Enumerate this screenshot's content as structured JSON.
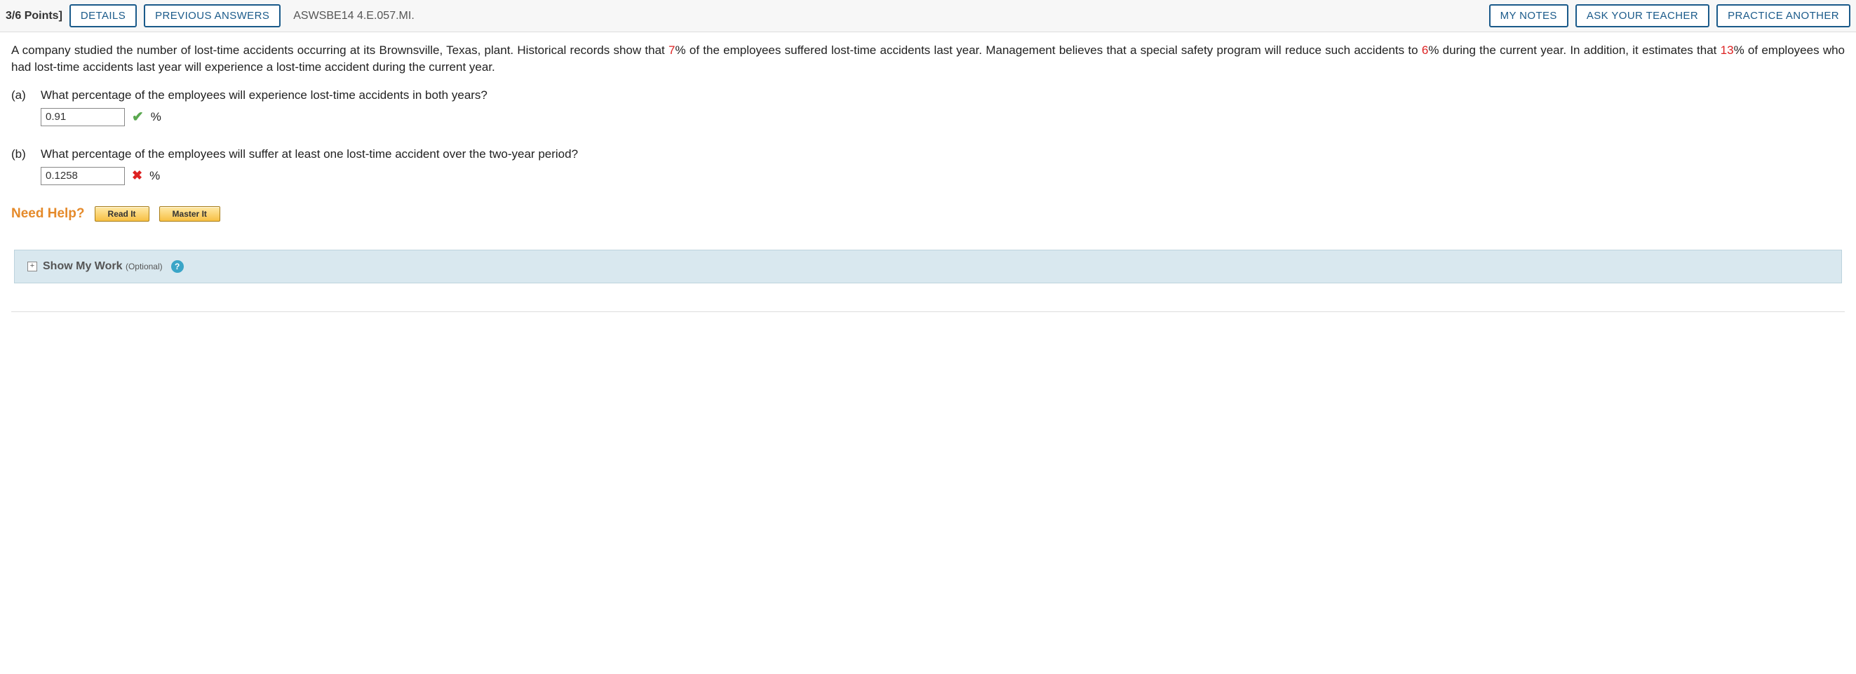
{
  "header": {
    "points": "3/6 Points]",
    "details_btn": "DETAILS",
    "previous_btn": "PREVIOUS ANSWERS",
    "source": "ASWSBE14 4.E.057.MI.",
    "mynotes_btn": "MY NOTES",
    "ask_btn": "ASK YOUR TEACHER",
    "practice_btn": "PRACTICE ANOTHER"
  },
  "problem": {
    "pre1": "A company studied the number of lost-time accidents occurring at its Brownsville, Texas, plant. Historical records show that ",
    "pct1": "7",
    "mid1": "% of the employees suffered lost-time accidents last year. Management believes that a special safety program will reduce such accidents to ",
    "pct2": "6",
    "mid2": "% during the current year. In addition, it estimates that ",
    "pct3": "13",
    "post": "% of employees who had lost-time accidents last year will experience a lost-time accident during the current year."
  },
  "parts": {
    "a": {
      "label": "(a)",
      "question": "What percentage of the employees will experience lost-time accidents in both years?",
      "value": "0.91",
      "unit": "%",
      "correct": true
    },
    "b": {
      "label": "(b)",
      "question": "What percentage of the employees will suffer at least one lost-time accident over the two-year period?",
      "value": "0.1258",
      "unit": "%",
      "correct": false
    }
  },
  "help": {
    "label": "Need Help?",
    "read_btn": "Read It",
    "master_btn": "Master It"
  },
  "showwork": {
    "label": "Show My Work",
    "optional": "(Optional)"
  },
  "colors": {
    "button_border": "#1a5a8a",
    "highlight_red": "#d22",
    "need_help_orange": "#e58a2a",
    "showwork_bg": "#d9e8ef"
  }
}
